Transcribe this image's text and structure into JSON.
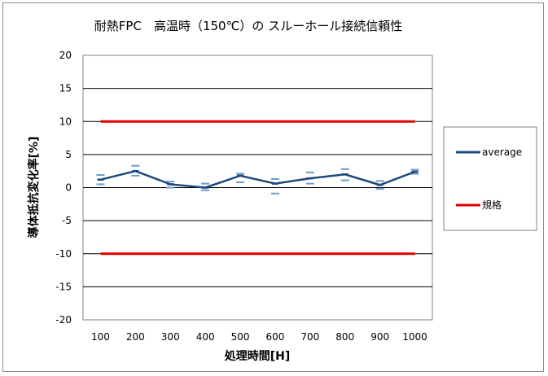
{
  "chart_data": {
    "type": "line",
    "title": "耐熱FPC　高温時（150℃）の スルーホール接続信頼性",
    "xlabel": "処理時間[H]",
    "ylabel": "導体抵抗変化率[%]",
    "categories": [
      "100",
      "200",
      "300",
      "400",
      "500",
      "600",
      "700",
      "800",
      "900",
      "1000"
    ],
    "ylim": [
      -20,
      20
    ],
    "yticks": [
      20,
      15,
      10,
      5,
      0,
      -5,
      -10,
      -15,
      -20
    ],
    "grid": true,
    "legend_position": "right",
    "series": [
      {
        "name": "average",
        "color": "#1f497d",
        "values": [
          1.2,
          2.5,
          0.5,
          0.0,
          1.8,
          0.6,
          1.4,
          2.0,
          0.4,
          2.4
        ],
        "err_high": [
          1.9,
          3.3,
          0.9,
          0.6,
          2.1,
          1.3,
          2.3,
          2.8,
          1.0,
          2.7
        ],
        "err_low": [
          0.5,
          1.8,
          0.0,
          -0.4,
          0.8,
          -0.9,
          0.6,
          1.1,
          -0.2,
          2.1
        ]
      },
      {
        "name": "規格",
        "color": "#e00000",
        "values_upper": 10,
        "values_lower": -10
      }
    ]
  }
}
